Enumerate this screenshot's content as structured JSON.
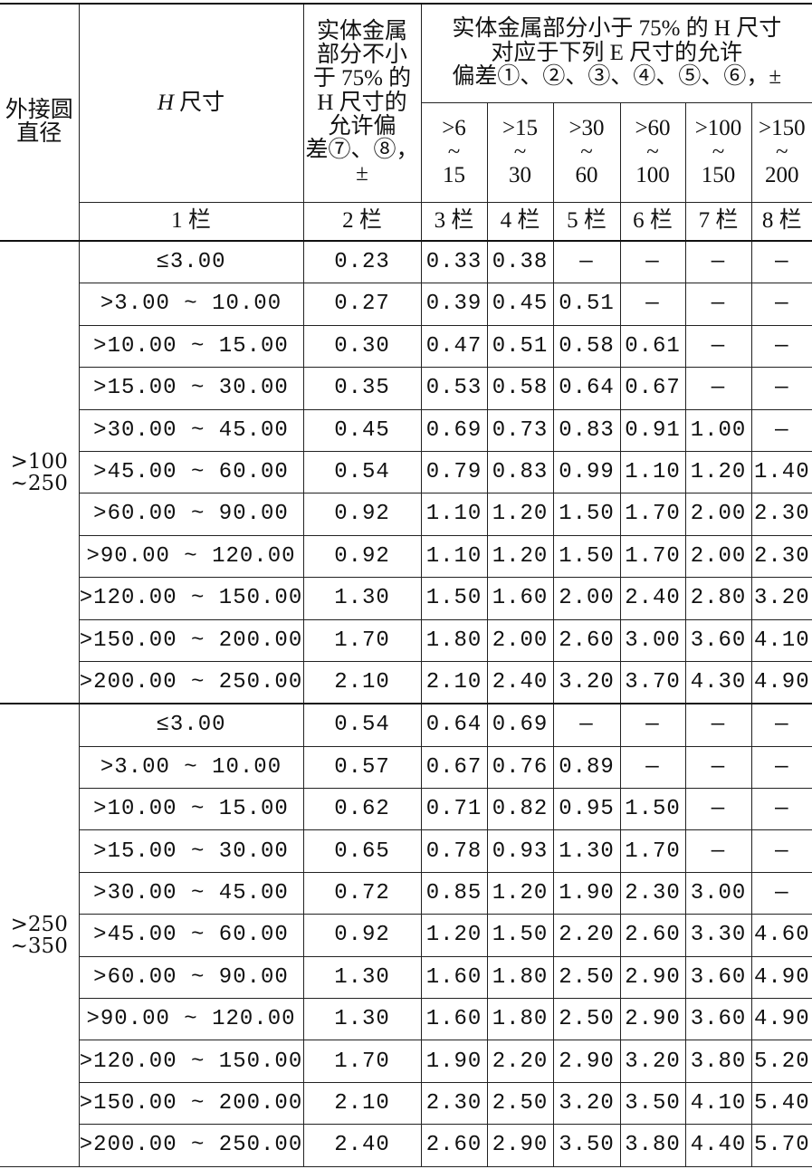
{
  "header": {
    "col_outer_diameter": "外接圆直径",
    "col_h_var": "H",
    "col_h_rest": "尺寸",
    "col_ge75": [
      "实体金属",
      "部分不小",
      "于 75% 的",
      "H 尺寸的",
      "允许偏",
      "差⑦、⑧，±"
    ],
    "col_lt75": [
      "实体金属部分小于 75% 的 H 尺寸",
      "对应于下列 E 尺寸的允许",
      "偏差①、②、③、④、⑤、⑥，±"
    ],
    "e_ranges": [
      {
        "from": ">6",
        "sep": "~",
        "to": "15"
      },
      {
        "from": ">15",
        "sep": "~",
        "to": "30"
      },
      {
        "from": ">30",
        "sep": "~",
        "to": "60"
      },
      {
        "from": ">60",
        "sep": "~",
        "to": "100"
      },
      {
        "from": ">100",
        "sep": "~",
        "to": "150"
      },
      {
        "from": ">150",
        "sep": "~",
        "to": "200"
      }
    ],
    "column_numbers": [
      "1 栏",
      "2 栏",
      "3 栏",
      "4 栏",
      "5 栏",
      "6 栏",
      "7 栏",
      "8 栏"
    ]
  },
  "groups": [
    {
      "diameter": [
        ">100",
        "~250"
      ],
      "rows": [
        [
          "≤3.00",
          "0.23",
          "0.33",
          "0.38",
          "—",
          "—",
          "—",
          "—"
        ],
        [
          ">3.00 ~ 10.00",
          "0.27",
          "0.39",
          "0.45",
          "0.51",
          "—",
          "—",
          "—"
        ],
        [
          ">10.00 ~ 15.00",
          "0.30",
          "0.47",
          "0.51",
          "0.58",
          "0.61",
          "—",
          "—"
        ],
        [
          ">15.00 ~ 30.00",
          "0.35",
          "0.53",
          "0.58",
          "0.64",
          "0.67",
          "—",
          "—"
        ],
        [
          ">30.00 ~ 45.00",
          "0.45",
          "0.69",
          "0.73",
          "0.83",
          "0.91",
          "1.00",
          "—"
        ],
        [
          ">45.00 ~ 60.00",
          "0.54",
          "0.79",
          "0.83",
          "0.99",
          "1.10",
          "1.20",
          "1.40"
        ],
        [
          ">60.00 ~ 90.00",
          "0.92",
          "1.10",
          "1.20",
          "1.50",
          "1.70",
          "2.00",
          "2.30"
        ],
        [
          ">90.00 ~ 120.00",
          "0.92",
          "1.10",
          "1.20",
          "1.50",
          "1.70",
          "2.00",
          "2.30"
        ],
        [
          ">120.00 ~ 150.00",
          "1.30",
          "1.50",
          "1.60",
          "2.00",
          "2.40",
          "2.80",
          "3.20"
        ],
        [
          ">150.00 ~ 200.00",
          "1.70",
          "1.80",
          "2.00",
          "2.60",
          "3.00",
          "3.60",
          "4.10"
        ],
        [
          ">200.00 ~ 250.00",
          "2.10",
          "2.10",
          "2.40",
          "3.20",
          "3.70",
          "4.30",
          "4.90"
        ]
      ]
    },
    {
      "diameter": [
        ">250",
        "~350"
      ],
      "rows": [
        [
          "≤3.00",
          "0.54",
          "0.64",
          "0.69",
          "—",
          "—",
          "—",
          "—"
        ],
        [
          ">3.00 ~ 10.00",
          "0.57",
          "0.67",
          "0.76",
          "0.89",
          "—",
          "—",
          "—"
        ],
        [
          ">10.00 ~ 15.00",
          "0.62",
          "0.71",
          "0.82",
          "0.95",
          "1.50",
          "—",
          "—"
        ],
        [
          ">15.00 ~ 30.00",
          "0.65",
          "0.78",
          "0.93",
          "1.30",
          "1.70",
          "—",
          "—"
        ],
        [
          ">30.00 ~ 45.00",
          "0.72",
          "0.85",
          "1.20",
          "1.90",
          "2.30",
          "3.00",
          "—"
        ],
        [
          ">45.00 ~ 60.00",
          "0.92",
          "1.20",
          "1.50",
          "2.20",
          "2.60",
          "3.30",
          "4.60"
        ],
        [
          ">60.00 ~ 90.00",
          "1.30",
          "1.60",
          "1.80",
          "2.50",
          "2.90",
          "3.60",
          "4.90"
        ],
        [
          ">90.00 ~ 120.00",
          "1.30",
          "1.60",
          "1.80",
          "2.50",
          "2.90",
          "3.60",
          "4.90"
        ],
        [
          ">120.00 ~ 150.00",
          "1.70",
          "1.90",
          "2.20",
          "2.90",
          "3.20",
          "3.80",
          "5.20"
        ],
        [
          ">150.00 ~ 200.00",
          "2.10",
          "2.30",
          "2.50",
          "3.20",
          "3.50",
          "4.10",
          "5.40"
        ],
        [
          ">200.00 ~ 250.00",
          "2.40",
          "2.60",
          "2.90",
          "3.50",
          "3.80",
          "4.40",
          "5.70"
        ]
      ]
    }
  ]
}
